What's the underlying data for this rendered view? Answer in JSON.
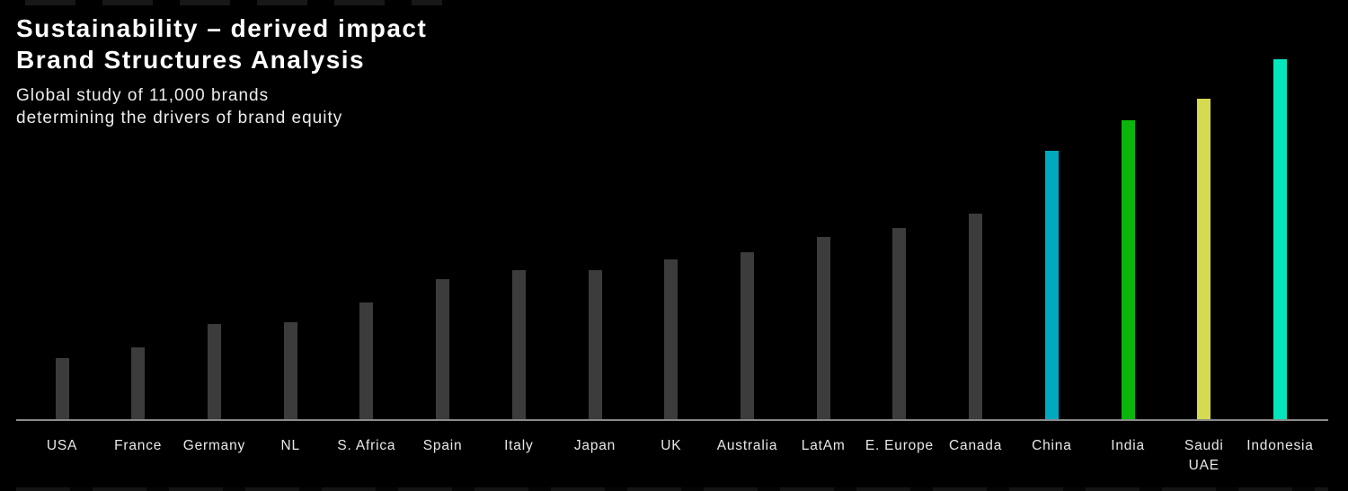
{
  "header": {
    "title_line1": "Sustainability – derived impact",
    "title_line2": "Brand Structures Analysis",
    "subtitle_line1": "Global study of 11,000 brands",
    "subtitle_line2": "determining the drivers of brand equity"
  },
  "colors": {
    "background": "#000000",
    "title_text": "#ffffff",
    "subtitle_text": "#ececec",
    "tick_label_text": "#e8e8e8",
    "axis_line": "#8a8a8a",
    "bar_default": "#3c3c3c",
    "highlight_china": "#00a9be",
    "highlight_india": "#0cb50c",
    "highlight_saudi_uae": "#d5da50",
    "highlight_indonesia": "#04e5bc"
  },
  "chart_data": {
    "type": "bar",
    "title": "Sustainability – derived impact Brand Structures Analysis",
    "subtitle": "Global study of 11,000 brands determining the drivers of brand equity",
    "xlabel": "",
    "ylabel": "",
    "ylim": [
      0,
      100
    ],
    "grid": false,
    "legend": false,
    "categories": [
      "USA",
      "France",
      "Germany",
      "NL",
      "S. Africa",
      "Spain",
      "Italy",
      "Japan",
      "UK",
      "Australia",
      "LatAm",
      "E. Europe",
      "Canada",
      "China",
      "India",
      "Saudi UAE",
      "Indonesia"
    ],
    "tick_labels": [
      "USA",
      "France",
      "Germany",
      "NL",
      "S. Africa",
      "Spain",
      "Italy",
      "Japan",
      "UK",
      "Australia",
      "LatAm",
      "E. Europe",
      "Canada",
      "China",
      "India",
      "Saudi\nUAE",
      "Indonesia"
    ],
    "values": [
      17,
      20,
      26.5,
      27,
      32.5,
      39,
      41.5,
      41.5,
      44.5,
      46.5,
      50.5,
      53,
      57,
      74.5,
      83,
      89,
      100
    ],
    "bar_colors": [
      "#3c3c3c",
      "#3c3c3c",
      "#3c3c3c",
      "#3c3c3c",
      "#3c3c3c",
      "#3c3c3c",
      "#3c3c3c",
      "#3c3c3c",
      "#3c3c3c",
      "#3c3c3c",
      "#3c3c3c",
      "#3c3c3c",
      "#3c3c3c",
      "#00a9be",
      "#0cb50c",
      "#d5da50",
      "#04e5bc"
    ]
  }
}
